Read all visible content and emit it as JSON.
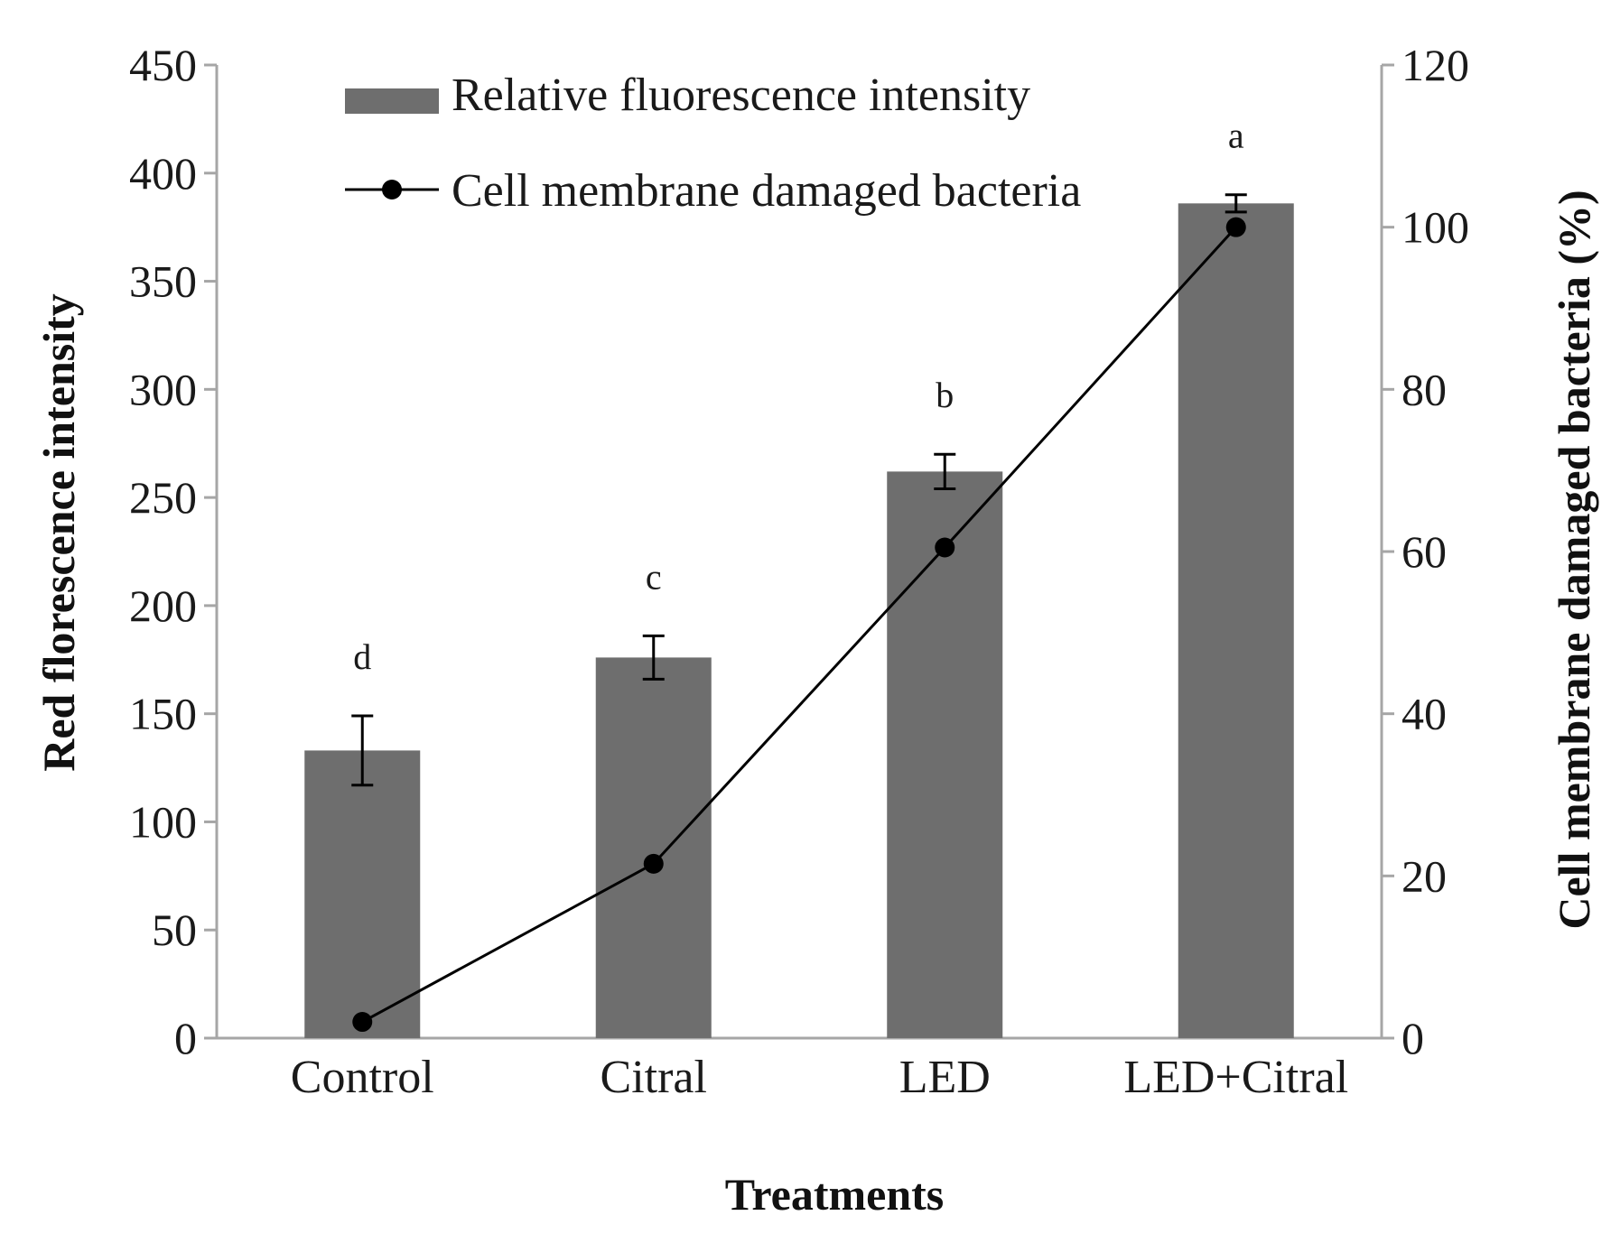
{
  "chart_data": {
    "type": "bar",
    "categories": [
      "Control",
      "Citral",
      "LED",
      "LED+Citral"
    ],
    "series": [
      {
        "name": "Relative fluorescence intensity",
        "kind": "bar",
        "axis": "left",
        "values": [
          133,
          176,
          262,
          386
        ],
        "errors": [
          16,
          10,
          8,
          4
        ],
        "color": "#6e6e6e"
      },
      {
        "name": "Cell membrane damaged bacteria",
        "kind": "line",
        "axis": "right",
        "values": [
          2,
          21.5,
          60.5,
          100
        ],
        "color": "#000000"
      }
    ],
    "significance_letters": [
      "d",
      "c",
      "b",
      "a"
    ],
    "xlabel": "Treatments",
    "ylabel": "Red florescence intensity",
    "ylabel_right": "Cell membrane damaged bacteria (%)",
    "ylim": [
      0,
      450
    ],
    "ylim_right": [
      0,
      120
    ],
    "yticks": [
      "0",
      "50",
      "100",
      "150",
      "200",
      "250",
      "300",
      "350",
      "400",
      "450"
    ],
    "yticks_right": [
      "0",
      "20",
      "40",
      "60",
      "80",
      "100",
      "120"
    ],
    "grid": false,
    "legend_position": "top"
  }
}
